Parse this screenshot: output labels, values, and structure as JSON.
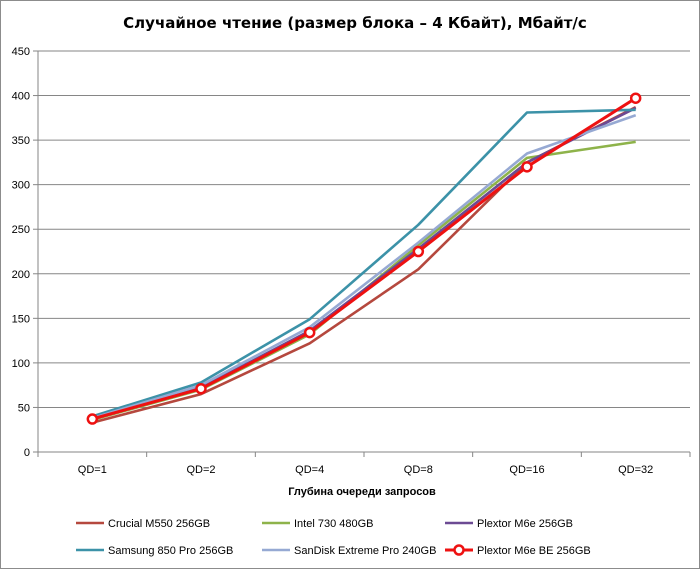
{
  "chart_data": {
    "type": "line",
    "title": "Случайное чтение (размер блока – 4 Кбайт), Мбайт/с",
    "xlabel": "Глубина очереди запросов",
    "ylabel": "",
    "categories": [
      "QD=1",
      "QD=2",
      "QD=4",
      "QD=8",
      "QD=16",
      "QD=32"
    ],
    "ylim": [
      0,
      450
    ],
    "yticks": [
      0,
      50,
      100,
      150,
      200,
      250,
      300,
      350,
      400,
      450
    ],
    "grid": true,
    "legend_position": "bottom",
    "series": [
      {
        "name": "Crucial M550 256GB",
        "color": "#b5483e",
        "values": [
          33,
          65,
          122,
          205,
          325,
          387
        ],
        "marker": false
      },
      {
        "name": "Intel 730 480GB",
        "color": "#8eb34a",
        "values": [
          36,
          70,
          132,
          232,
          330,
          348
        ],
        "marker": false
      },
      {
        "name": "Plextor M6e 256GB",
        "color": "#6c4a93",
        "values": [
          37,
          72,
          136,
          228,
          325,
          386
        ],
        "marker": false
      },
      {
        "name": "Samsung 850 Pro 256GB",
        "color": "#3c92a8",
        "values": [
          40,
          78,
          149,
          255,
          381,
          384
        ],
        "marker": false
      },
      {
        "name": "SanDisk Extreme Pro 240GB",
        "color": "#96a9d3",
        "values": [
          38,
          75,
          140,
          235,
          335,
          378
        ],
        "marker": false
      },
      {
        "name": "Plextor M6e BE 256GB",
        "color": "#ee1111",
        "values": [
          37,
          71,
          134,
          225,
          320,
          397
        ],
        "marker": true
      }
    ]
  }
}
